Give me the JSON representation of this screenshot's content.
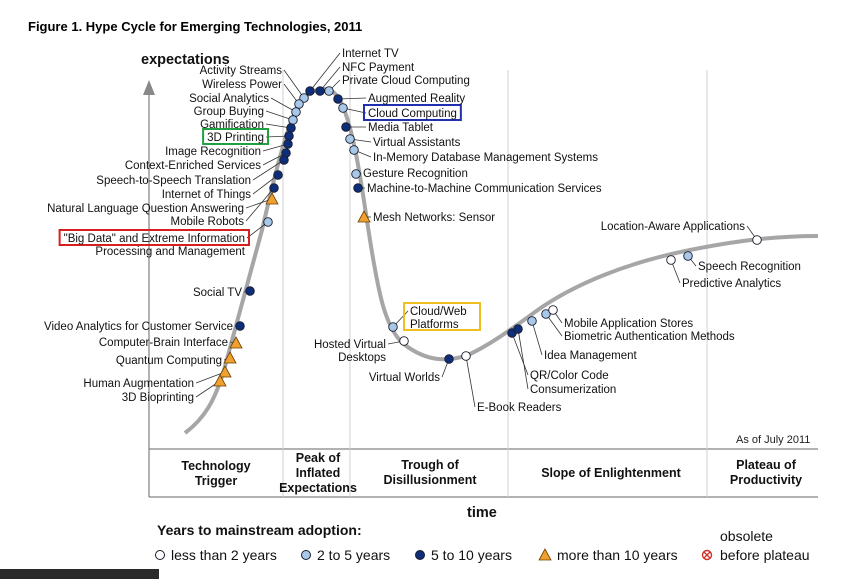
{
  "figure_title": "Figure 1. Hype Cycle for Emerging Technologies, 2011",
  "y_axis_label": "expectations",
  "x_axis_label": "time",
  "as_of": "As of July 2011",
  "phases": [
    {
      "lines": [
        "Technology",
        "Trigger"
      ]
    },
    {
      "lines": [
        "Peak of",
        "Inflated",
        "Expectations"
      ]
    },
    {
      "lines": [
        "Trough of",
        "Disillusionment"
      ]
    },
    {
      "lines": [
        "Slope of Enlightenment"
      ]
    },
    {
      "lines": [
        "Plateau of",
        "Productivity"
      ]
    }
  ],
  "legend": {
    "title": "Years to mainstream adoption:",
    "items": [
      {
        "label": "less than 2 years",
        "symbol": "white-circle"
      },
      {
        "label": "2 to 5 years",
        "symbol": "lightblue-circle"
      },
      {
        "label": "5 to 10 years",
        "symbol": "darkblue-circle"
      },
      {
        "label": "more than 10 years",
        "symbol": "orange-triangle"
      },
      {
        "label": "obsolete",
        "label2": "before plateau",
        "symbol": "red-cross-circle"
      }
    ]
  },
  "colors": {
    "curve": "#a6a6a6",
    "white_marker": "#ffffff",
    "lightblue_marker": "#a8c8ea",
    "darkblue_marker": "#0d2f7a",
    "orange_marker": "#f0a030",
    "obsolete_marker": "#d0302a",
    "highlight_red": "#d42020",
    "highlight_green": "#20a040",
    "highlight_blue": "#2030b0",
    "highlight_yellow": "#f0c020"
  },
  "technologies": [
    {
      "name": "Internet TV",
      "type": "darkblue"
    },
    {
      "name": "NFC Payment",
      "type": "darkblue"
    },
    {
      "name": "Private Cloud Computing",
      "type": "lightblue"
    },
    {
      "name": "Augmented Reality",
      "type": "darkblue"
    },
    {
      "name": "Cloud Computing",
      "type": "lightblue",
      "highlight": "blue"
    },
    {
      "name": "Media Tablet",
      "type": "darkblue"
    },
    {
      "name": "Virtual Assistants",
      "type": "lightblue"
    },
    {
      "name": "In-Memory Database Management Systems",
      "type": "lightblue"
    },
    {
      "name": "Gesture Recognition",
      "type": "lightblue"
    },
    {
      "name": "Machine-to-Machine Communication Services",
      "type": "darkblue"
    },
    {
      "name": "Mesh Networks: Sensor",
      "type": "orange"
    },
    {
      "name": "Activity Streams",
      "type": "lightblue"
    },
    {
      "name": "Wireless Power",
      "type": "lightblue"
    },
    {
      "name": "Social Analytics",
      "type": "lightblue"
    },
    {
      "name": "Group Buying",
      "type": "lightblue"
    },
    {
      "name": "Gamification",
      "type": "darkblue"
    },
    {
      "name": "3D Printing",
      "type": "darkblue",
      "highlight": "green"
    },
    {
      "name": "Image Recognition",
      "type": "darkblue"
    },
    {
      "name": "Context-Enriched Services",
      "type": "darkblue"
    },
    {
      "name": "Speech-to-Speech Translation",
      "type": "darkblue"
    },
    {
      "name": "Internet of Things",
      "type": "darkblue"
    },
    {
      "name": "Natural Language Question Answering",
      "type": "orange"
    },
    {
      "name": "Mobile Robots",
      "type": "darkblue"
    },
    {
      "name": "\"Big Data\" and Extreme Information",
      "name2": "Processing and Management",
      "type": "lightblue",
      "highlight": "red"
    },
    {
      "name": "Social TV",
      "type": "darkblue"
    },
    {
      "name": "Video Analytics for Customer Service",
      "type": "darkblue"
    },
    {
      "name": "Computer-Brain Interface",
      "type": "orange"
    },
    {
      "name": "Quantum Computing",
      "type": "orange"
    },
    {
      "name": "Human Augmentation",
      "type": "orange"
    },
    {
      "name": "3D Bioprinting",
      "type": "orange"
    },
    {
      "name": "Cloud/Web",
      "name2": "Platforms",
      "type": "lightblue",
      "highlight": "yellow"
    },
    {
      "name": "Hosted Virtual",
      "name2": "Desktops",
      "type": "white"
    },
    {
      "name": "Virtual Worlds",
      "type": "darkblue"
    },
    {
      "name": "E-Book Readers",
      "type": "white"
    },
    {
      "name": "QR/Color Code",
      "type": "darkblue"
    },
    {
      "name": "Consumerization",
      "type": "darkblue"
    },
    {
      "name": "Idea Management",
      "type": "lightblue"
    },
    {
      "name": "Biometric Authentication Methods",
      "type": "lightblue"
    },
    {
      "name": "Mobile Application Stores",
      "type": "white"
    },
    {
      "name": "Predictive Analytics",
      "type": "white"
    },
    {
      "name": "Speech Recognition",
      "type": "lightblue"
    },
    {
      "name": "Location-Aware Applications",
      "type": "white"
    }
  ]
}
